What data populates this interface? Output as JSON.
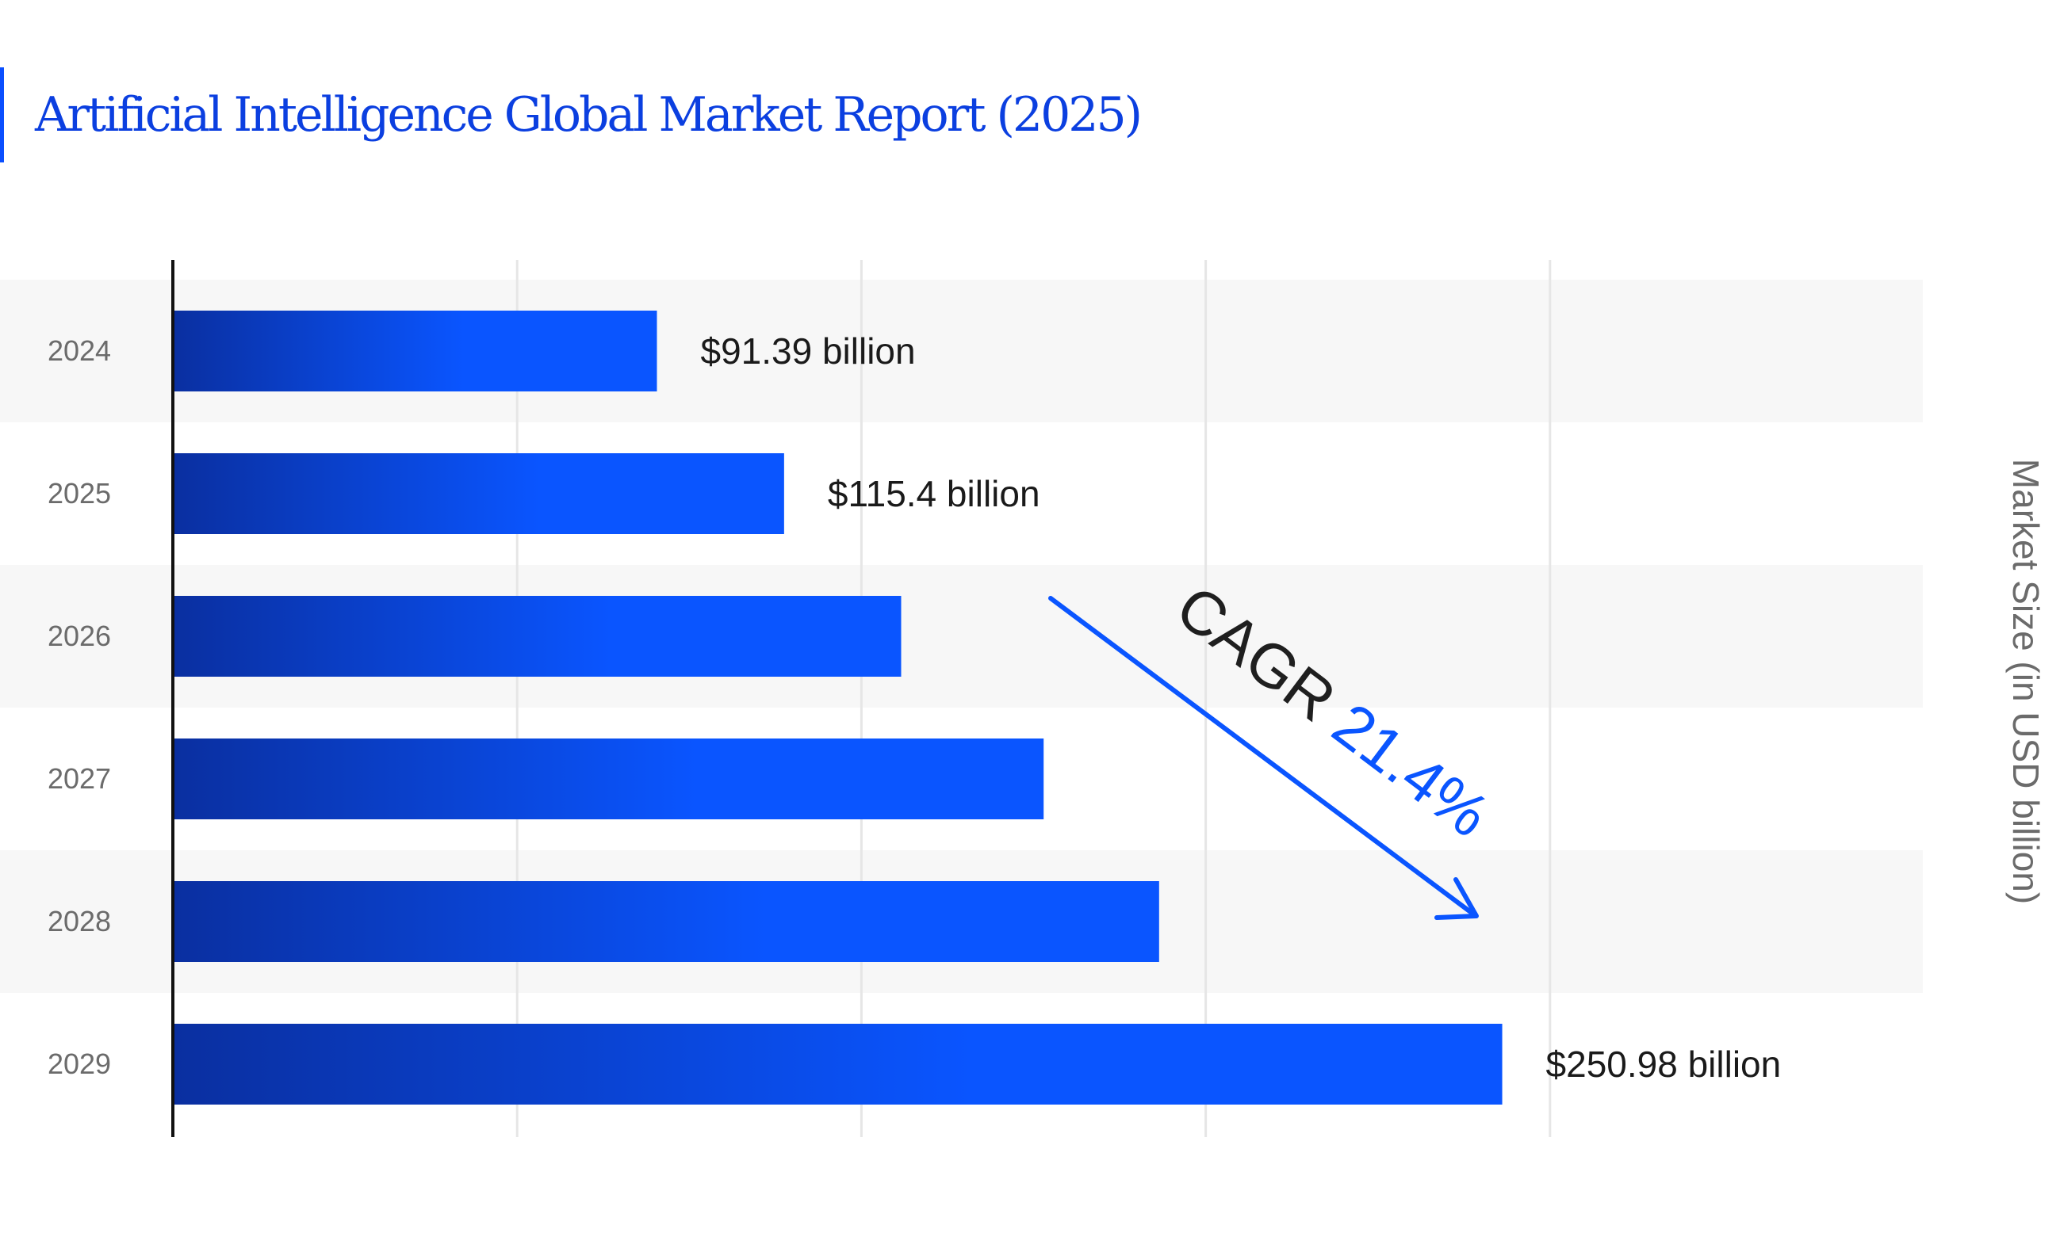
{
  "chart_data": {
    "type": "bar",
    "orientation": "horizontal",
    "title": "Artificial Intelligence Global Market Report (2025)",
    "ylabel": "Market Size (in USD billion)",
    "categories": [
      "2024",
      "2025",
      "2026",
      "2027",
      "2028",
      "2029"
    ],
    "values": [
      91.39,
      115.4,
      137.5,
      164.4,
      186.2,
      250.98
    ],
    "data_labels": [
      "$91.39 billion",
      "$115.4 billion",
      "",
      "",
      "",
      "$250.98 billion"
    ],
    "xlim": [
      0,
      260
    ],
    "grid": true,
    "annotation": {
      "prefix": "CAGR",
      "value": "21.4%"
    },
    "colors": {
      "title": "#0b3fe0",
      "accent": "#0a4fff",
      "bar_start": "#0a2fa0",
      "bar_end": "#0a55ff",
      "band": "#f7f7f7",
      "grid": "#e6e6e6",
      "axis": "#111111",
      "tick_text": "#6b6b6b",
      "label_text": "#1a1a1a",
      "arrow": "#0a55ff"
    }
  }
}
